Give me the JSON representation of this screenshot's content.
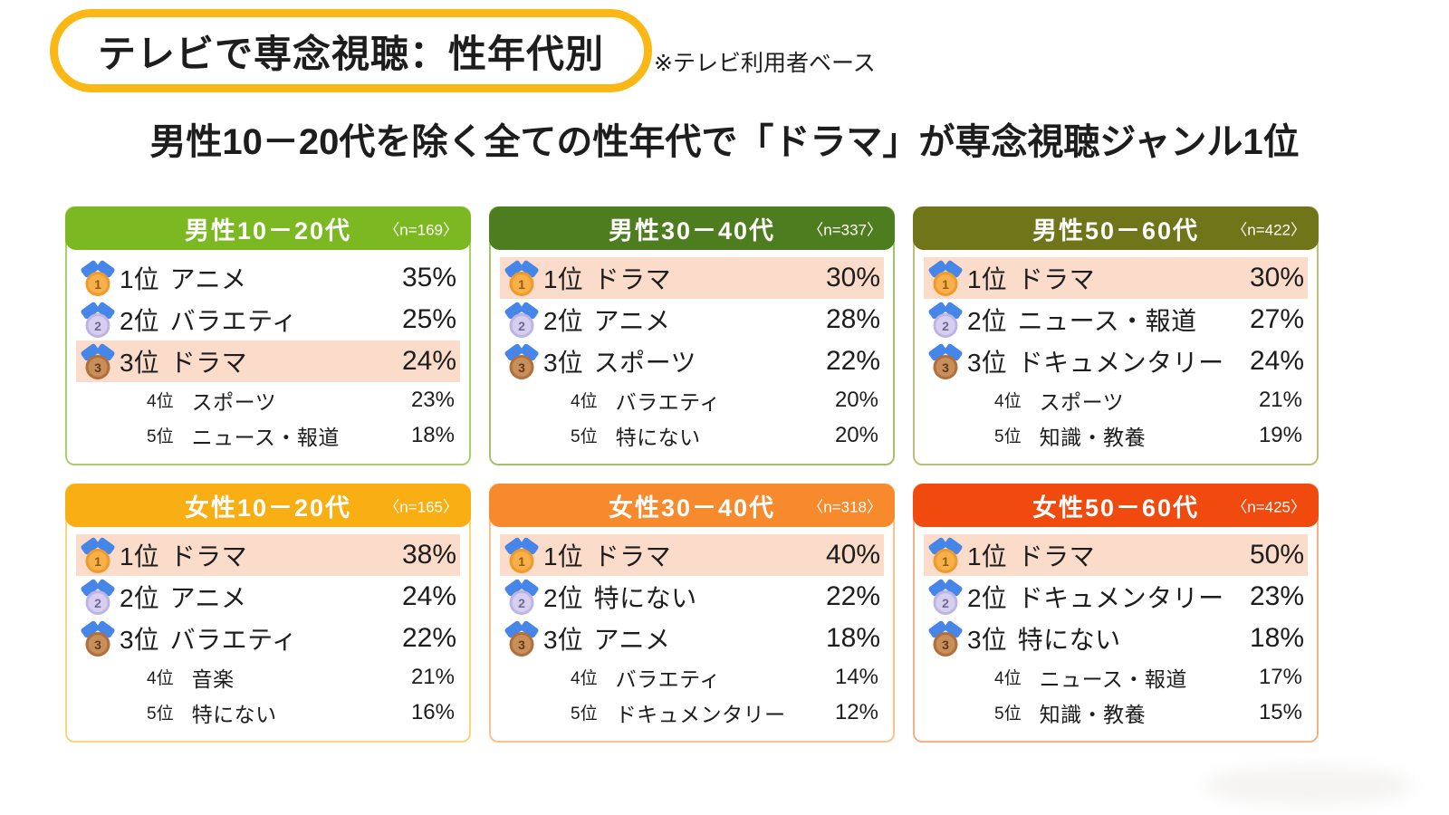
{
  "page": {
    "badge": "テレビで専念視聴：性年代別",
    "note": "※テレビ利用者ベース",
    "title": "男性10－20代を除く全ての性年代で「ドラマ」が専念視聴ジャンル1位"
  },
  "colors": {
    "badge_border": "#FBB713",
    "highlight_row": "#FBDCCB",
    "medal_ribbon_blue": "#4586E8"
  },
  "cards": [
    {
      "title": "男性10－20代",
      "n_label": "〈n=169〉",
      "header_color": "#7CB822",
      "border_color": "#A6D16A",
      "rows": [
        {
          "rank": "1位",
          "genre": "アニメ",
          "value": "35%",
          "medal": "gold",
          "highlight": false
        },
        {
          "rank": "2位",
          "genre": "バラエティ",
          "value": "25%",
          "medal": "silver",
          "highlight": false
        },
        {
          "rank": "3位",
          "genre": "ドラマ",
          "value": "24%",
          "medal": "bronze",
          "highlight": true
        },
        {
          "rank": "4位",
          "genre": "スポーツ",
          "value": "23%"
        },
        {
          "rank": "5位",
          "genre": "ニュース・報道",
          "value": "18%"
        }
      ]
    },
    {
      "title": "男性30－40代",
      "n_label": "〈n=337〉",
      "header_color": "#4E7D20",
      "border_color": "#9FC46A",
      "rows": [
        {
          "rank": "1位",
          "genre": "ドラマ",
          "value": "30%",
          "medal": "gold",
          "highlight": true
        },
        {
          "rank": "2位",
          "genre": "アニメ",
          "value": "28%",
          "medal": "silver",
          "highlight": false
        },
        {
          "rank": "3位",
          "genre": "スポーツ",
          "value": "22%",
          "medal": "bronze",
          "highlight": false
        },
        {
          "rank": "4位",
          "genre": "バラエティ",
          "value": "20%"
        },
        {
          "rank": "5位",
          "genre": "特にない",
          "value": "20%"
        }
      ]
    },
    {
      "title": "男性50－60代",
      "n_label": "〈n=422〉",
      "header_color": "#70751A",
      "border_color": "#BCBE7A",
      "rows": [
        {
          "rank": "1位",
          "genre": "ドラマ",
          "value": "30%",
          "medal": "gold",
          "highlight": true
        },
        {
          "rank": "2位",
          "genre": "ニュース・報道",
          "value": "27%",
          "medal": "silver",
          "highlight": false
        },
        {
          "rank": "3位",
          "genre": "ドキュメンタリー",
          "value": "24%",
          "medal": "bronze",
          "highlight": false
        },
        {
          "rank": "4位",
          "genre": "スポーツ",
          "value": "21%"
        },
        {
          "rank": "5位",
          "genre": "知識・教養",
          "value": "19%"
        }
      ]
    },
    {
      "title": "女性10－20代",
      "n_label": "〈n=165〉",
      "header_color": "#F9AE13",
      "border_color": "#FBD480",
      "rows": [
        {
          "rank": "1位",
          "genre": "ドラマ",
          "value": "38%",
          "medal": "gold",
          "highlight": true
        },
        {
          "rank": "2位",
          "genre": "アニメ",
          "value": "24%",
          "medal": "silver",
          "highlight": false
        },
        {
          "rank": "3位",
          "genre": "バラエティ",
          "value": "22%",
          "medal": "bronze",
          "highlight": false
        },
        {
          "rank": "4位",
          "genre": "音楽",
          "value": "21%"
        },
        {
          "rank": "5位",
          "genre": "特にない",
          "value": "16%"
        }
      ]
    },
    {
      "title": "女性30－40代",
      "n_label": "〈n=318〉",
      "header_color": "#F68A2D",
      "border_color": "#FAC38E",
      "rows": [
        {
          "rank": "1位",
          "genre": "ドラマ",
          "value": "40%",
          "medal": "gold",
          "highlight": true
        },
        {
          "rank": "2位",
          "genre": "特にない",
          "value": "22%",
          "medal": "silver",
          "highlight": false
        },
        {
          "rank": "3位",
          "genre": "アニメ",
          "value": "18%",
          "medal": "bronze",
          "highlight": false
        },
        {
          "rank": "4位",
          "genre": "バラエティ",
          "value": "14%"
        },
        {
          "rank": "5位",
          "genre": "ドキュメンタリー",
          "value": "12%"
        }
      ]
    },
    {
      "title": "女性50－60代",
      "n_label": "〈n=425〉",
      "header_color": "#F04A0E",
      "border_color": "#F7B088",
      "rows": [
        {
          "rank": "1位",
          "genre": "ドラマ",
          "value": "50%",
          "medal": "gold",
          "highlight": true
        },
        {
          "rank": "2位",
          "genre": "ドキュメンタリー",
          "value": "23%",
          "medal": "silver",
          "highlight": false
        },
        {
          "rank": "3位",
          "genre": "特にない",
          "value": "18%",
          "medal": "bronze",
          "highlight": false
        },
        {
          "rank": "4位",
          "genre": "ニュース・報道",
          "value": "17%"
        },
        {
          "rank": "5位",
          "genre": "知識・教養",
          "value": "15%"
        }
      ]
    }
  ],
  "chart_data": {
    "type": "table",
    "title": "男性10－20代を除く全ての性年代で「ドラマ」が専念視聴ジャンル1位",
    "subtitle": "テレビで専念視聴：性年代別（※テレビ利用者ベース）",
    "unit": "%",
    "groups": [
      {
        "group": "男性10－20代",
        "n": 169,
        "ranking": [
          {
            "rank": 1,
            "genre": "アニメ",
            "pct": 35
          },
          {
            "rank": 2,
            "genre": "バラエティ",
            "pct": 25
          },
          {
            "rank": 3,
            "genre": "ドラマ",
            "pct": 24,
            "highlighted": true
          },
          {
            "rank": 4,
            "genre": "スポーツ",
            "pct": 23
          },
          {
            "rank": 5,
            "genre": "ニュース・報道",
            "pct": 18
          }
        ]
      },
      {
        "group": "男性30－40代",
        "n": 337,
        "ranking": [
          {
            "rank": 1,
            "genre": "ドラマ",
            "pct": 30,
            "highlighted": true
          },
          {
            "rank": 2,
            "genre": "アニメ",
            "pct": 28
          },
          {
            "rank": 3,
            "genre": "スポーツ",
            "pct": 22
          },
          {
            "rank": 4,
            "genre": "バラエティ",
            "pct": 20
          },
          {
            "rank": 5,
            "genre": "特にない",
            "pct": 20
          }
        ]
      },
      {
        "group": "男性50－60代",
        "n": 422,
        "ranking": [
          {
            "rank": 1,
            "genre": "ドラマ",
            "pct": 30,
            "highlighted": true
          },
          {
            "rank": 2,
            "genre": "ニュース・報道",
            "pct": 27
          },
          {
            "rank": 3,
            "genre": "ドキュメンタリー",
            "pct": 24
          },
          {
            "rank": 4,
            "genre": "スポーツ",
            "pct": 21
          },
          {
            "rank": 5,
            "genre": "知識・教養",
            "pct": 19
          }
        ]
      },
      {
        "group": "女性10－20代",
        "n": 165,
        "ranking": [
          {
            "rank": 1,
            "genre": "ドラマ",
            "pct": 38,
            "highlighted": true
          },
          {
            "rank": 2,
            "genre": "アニメ",
            "pct": 24
          },
          {
            "rank": 3,
            "genre": "バラエティ",
            "pct": 22
          },
          {
            "rank": 4,
            "genre": "音楽",
            "pct": 21
          },
          {
            "rank": 5,
            "genre": "特にない",
            "pct": 16
          }
        ]
      },
      {
        "group": "女性30－40代",
        "n": 318,
        "ranking": [
          {
            "rank": 1,
            "genre": "ドラマ",
            "pct": 40,
            "highlighted": true
          },
          {
            "rank": 2,
            "genre": "特にない",
            "pct": 22
          },
          {
            "rank": 3,
            "genre": "アニメ",
            "pct": 18
          },
          {
            "rank": 4,
            "genre": "バラエティ",
            "pct": 14
          },
          {
            "rank": 5,
            "genre": "ドキュメンタリー",
            "pct": 12
          }
        ]
      },
      {
        "group": "女性50－60代",
        "n": 425,
        "ranking": [
          {
            "rank": 1,
            "genre": "ドラマ",
            "pct": 50,
            "highlighted": true
          },
          {
            "rank": 2,
            "genre": "ドキュメンタリー",
            "pct": 23
          },
          {
            "rank": 3,
            "genre": "特にない",
            "pct": 18
          },
          {
            "rank": 4,
            "genre": "ニュース・報道",
            "pct": 17
          },
          {
            "rank": 5,
            "genre": "知識・教養",
            "pct": 15
          }
        ]
      }
    ]
  }
}
